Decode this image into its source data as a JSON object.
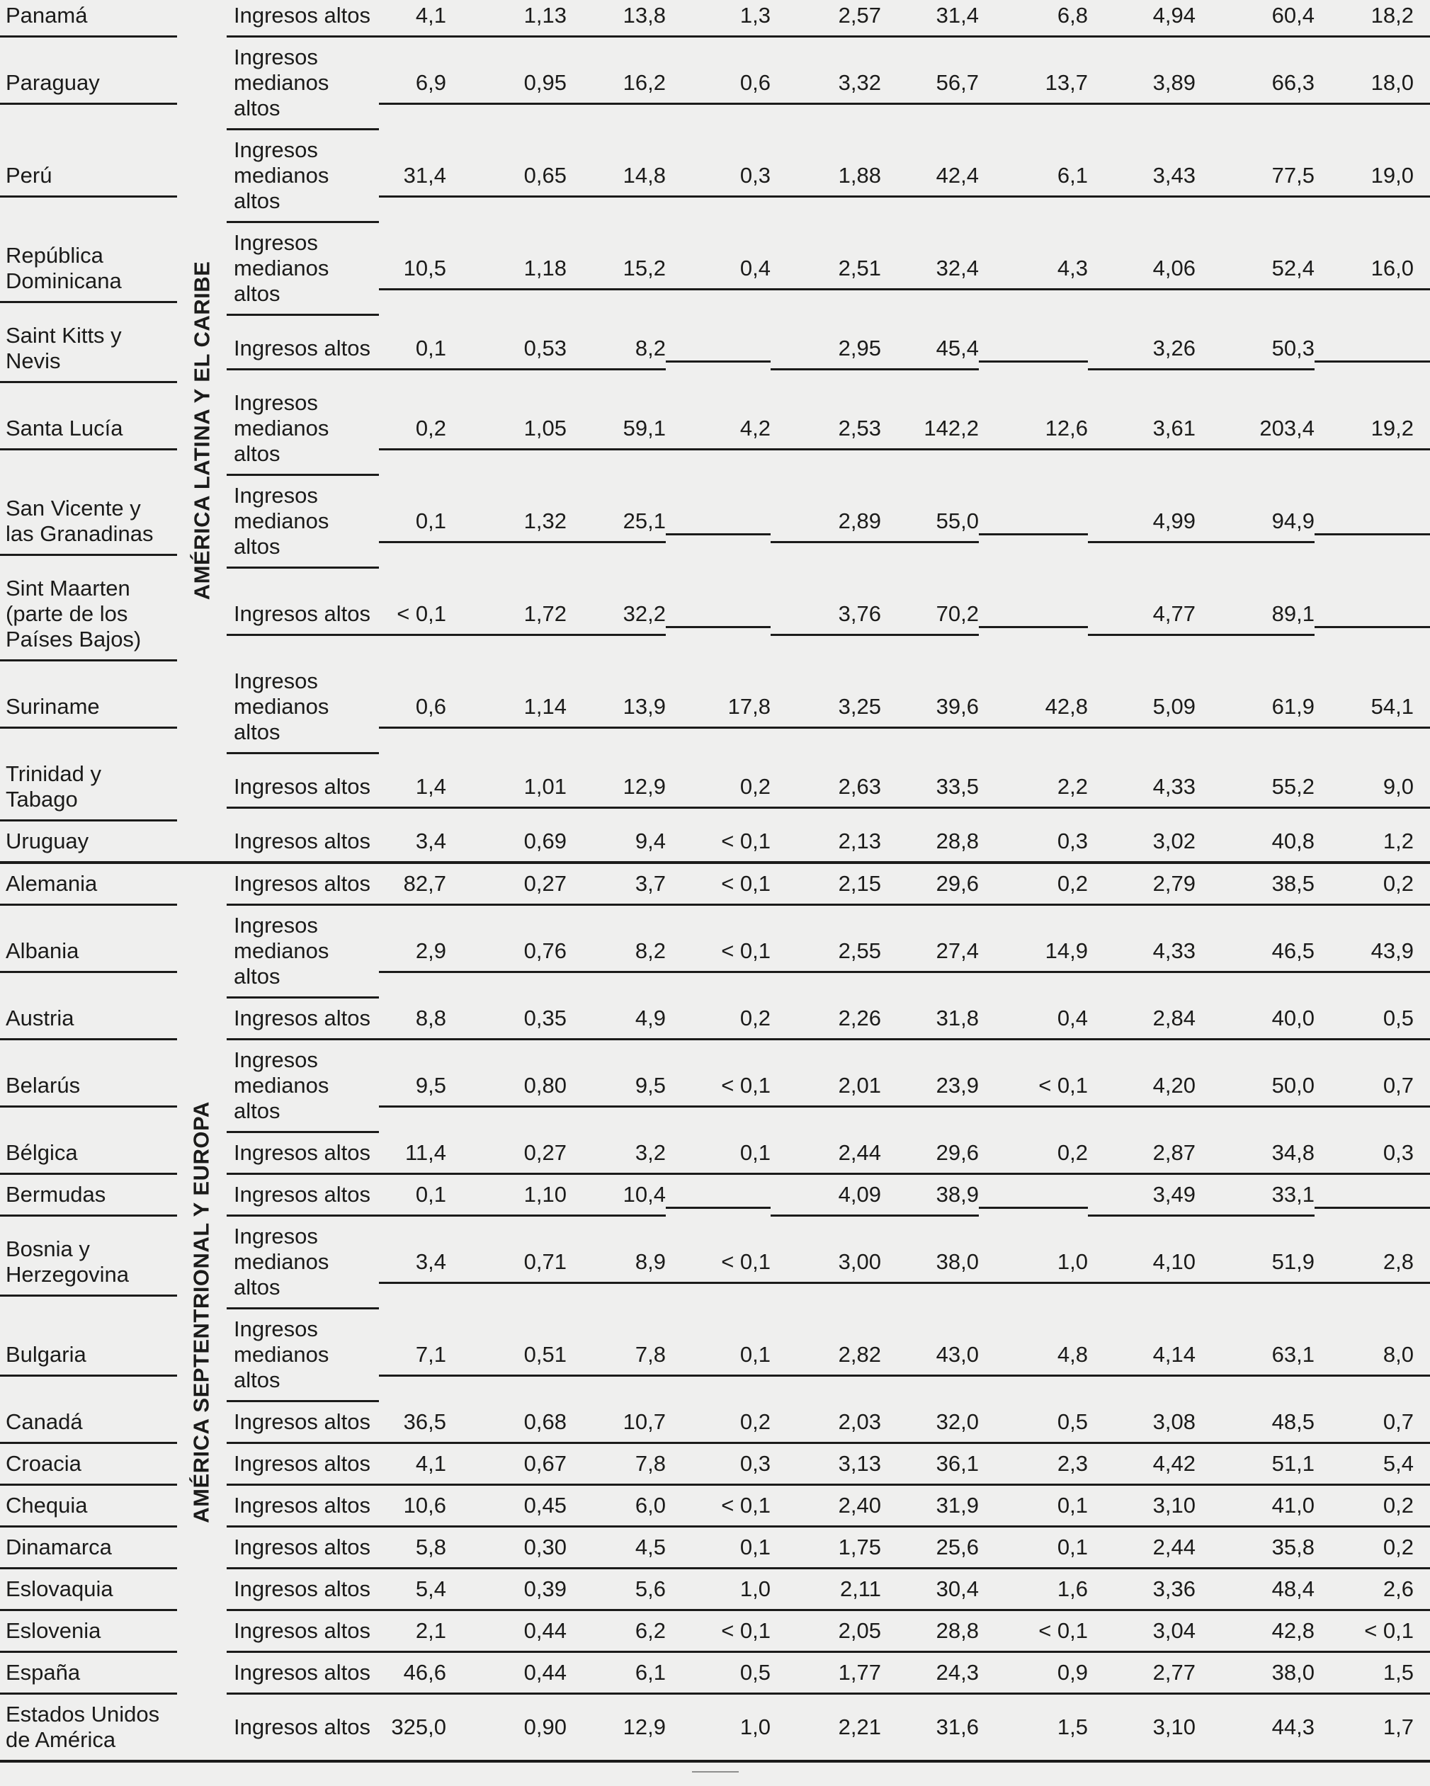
{
  "page": {
    "background": "#efefee",
    "text_color": "#1b1b1a",
    "rule_color": "#1b1b1a"
  },
  "table": {
    "income_group_labels": {
      "high": "Ingresos altos",
      "upper_middle": "Ingresos\nmedianos\naltos"
    },
    "regions": [
      {
        "name": "AMÉRICA LATINA Y EL CARIBE",
        "rows": [
          {
            "country": "Panamá",
            "income_group": "Ingresos altos",
            "values": [
              "4,1",
              "1,13",
              "13,8",
              "1,3",
              "2,57",
              "31,4",
              "6,8",
              "4,94",
              "60,4",
              "18,2"
            ]
          },
          {
            "country": "Paraguay",
            "income_group": "Ingresos\nmedianos\naltos",
            "values": [
              "6,9",
              "0,95",
              "16,2",
              "0,6",
              "3,32",
              "56,7",
              "13,7",
              "3,89",
              "66,3",
              "18,0"
            ]
          },
          {
            "country": "Perú",
            "income_group": "Ingresos\nmedianos\naltos",
            "values": [
              "31,4",
              "0,65",
              "14,8",
              "0,3",
              "1,88",
              "42,4",
              "6,1",
              "3,43",
              "77,5",
              "19,0"
            ]
          },
          {
            "country": "República\nDominicana",
            "income_group": "Ingresos\nmedianos\naltos",
            "values": [
              "10,5",
              "1,18",
              "15,2",
              "0,4",
              "2,51",
              "32,4",
              "4,3",
              "4,06",
              "52,4",
              "16,0"
            ]
          },
          {
            "country": "Saint Kitts y\nNevis",
            "income_group": "Ingresos altos",
            "values": [
              "0,1",
              "0,53",
              "8,2",
              "",
              "2,95",
              "45,4",
              "",
              "3,26",
              "50,3",
              ""
            ]
          },
          {
            "country": "Santa Lucía",
            "income_group": "Ingresos\nmedianos\naltos",
            "values": [
              "0,2",
              "1,05",
              "59,1",
              "4,2",
              "2,53",
              "142,2",
              "12,6",
              "3,61",
              "203,4",
              "19,2"
            ]
          },
          {
            "country": "San Vicente y\nlas Granadinas",
            "income_group": "Ingresos\nmedianos\naltos",
            "values": [
              "0,1",
              "1,32",
              "25,1",
              "",
              "2,89",
              "55,0",
              "",
              "4,99",
              "94,9",
              ""
            ]
          },
          {
            "country": "Sint Maarten\n(parte de los\nPaíses Bajos)",
            "income_group": "Ingresos altos",
            "values": [
              "< 0,1",
              "1,72",
              "32,2",
              "",
              "3,76",
              "70,2",
              "",
              "4,77",
              "89,1",
              ""
            ]
          },
          {
            "country": "Suriname",
            "income_group": "Ingresos\nmedianos\naltos",
            "values": [
              "0,6",
              "1,14",
              "13,9",
              "17,8",
              "3,25",
              "39,6",
              "42,8",
              "5,09",
              "61,9",
              "54,1"
            ]
          },
          {
            "country": "Trinidad y\nTabago",
            "income_group": "Ingresos altos",
            "values": [
              "1,4",
              "1,01",
              "12,9",
              "0,2",
              "2,63",
              "33,5",
              "2,2",
              "4,33",
              "55,2",
              "9,0"
            ]
          },
          {
            "country": "Uruguay",
            "income_group": "Ingresos altos",
            "values": [
              "3,4",
              "0,69",
              "9,4",
              "< 0,1",
              "2,13",
              "28,8",
              "0,3",
              "3,02",
              "40,8",
              "1,2"
            ]
          }
        ]
      },
      {
        "name": "AMÉRICA SEPTENTRIONAL Y EUROPA",
        "rows": [
          {
            "country": "Alemania",
            "income_group": "Ingresos altos",
            "values": [
              "82,7",
              "0,27",
              "3,7",
              "< 0,1",
              "2,15",
              "29,6",
              "0,2",
              "2,79",
              "38,5",
              "0,2"
            ]
          },
          {
            "country": "Albania",
            "income_group": "Ingresos\nmedianos\naltos",
            "values": [
              "2,9",
              "0,76",
              "8,2",
              "< 0,1",
              "2,55",
              "27,4",
              "14,9",
              "4,33",
              "46,5",
              "43,9"
            ]
          },
          {
            "country": "Austria",
            "income_group": "Ingresos altos",
            "values": [
              "8,8",
              "0,35",
              "4,9",
              "0,2",
              "2,26",
              "31,8",
              "0,4",
              "2,84",
              "40,0",
              "0,5"
            ]
          },
          {
            "country": "Belarús",
            "income_group": "Ingresos\nmedianos\naltos",
            "values": [
              "9,5",
              "0,80",
              "9,5",
              "< 0,1",
              "2,01",
              "23,9",
              "< 0,1",
              "4,20",
              "50,0",
              "0,7"
            ]
          },
          {
            "country": "Bélgica",
            "income_group": "Ingresos altos",
            "values": [
              "11,4",
              "0,27",
              "3,2",
              "0,1",
              "2,44",
              "29,6",
              "0,2",
              "2,87",
              "34,8",
              "0,3"
            ]
          },
          {
            "country": "Bermudas",
            "income_group": "Ingresos altos",
            "values": [
              "0,1",
              "1,10",
              "10,4",
              "",
              "4,09",
              "38,9",
              "",
              "3,49",
              "33,1",
              ""
            ]
          },
          {
            "country": "Bosnia y\nHerzegovina",
            "income_group": "Ingresos\nmedianos\naltos",
            "values": [
              "3,4",
              "0,71",
              "8,9",
              "< 0,1",
              "3,00",
              "38,0",
              "1,0",
              "4,10",
              "51,9",
              "2,8"
            ]
          },
          {
            "country": "Bulgaria",
            "income_group": "Ingresos\nmedianos\naltos",
            "values": [
              "7,1",
              "0,51",
              "7,8",
              "0,1",
              "2,82",
              "43,0",
              "4,8",
              "4,14",
              "63,1",
              "8,0"
            ]
          },
          {
            "country": "Canadá",
            "income_group": "Ingresos altos",
            "values": [
              "36,5",
              "0,68",
              "10,7",
              "0,2",
              "2,03",
              "32,0",
              "0,5",
              "3,08",
              "48,5",
              "0,7"
            ]
          },
          {
            "country": "Croacia",
            "income_group": "Ingresos altos",
            "values": [
              "4,1",
              "0,67",
              "7,8",
              "0,3",
              "3,13",
              "36,1",
              "2,3",
              "4,42",
              "51,1",
              "5,4"
            ]
          },
          {
            "country": "Chequia",
            "income_group": "Ingresos altos",
            "values": [
              "10,6",
              "0,45",
              "6,0",
              "< 0,1",
              "2,40",
              "31,9",
              "0,1",
              "3,10",
              "41,0",
              "0,2"
            ]
          },
          {
            "country": "Dinamarca",
            "income_group": "Ingresos altos",
            "values": [
              "5,8",
              "0,30",
              "4,5",
              "0,1",
              "1,75",
              "25,6",
              "0,1",
              "2,44",
              "35,8",
              "0,2"
            ]
          },
          {
            "country": "Eslovaquia",
            "income_group": "Ingresos altos",
            "values": [
              "5,4",
              "0,39",
              "5,6",
              "1,0",
              "2,11",
              "30,4",
              "1,6",
              "3,36",
              "48,4",
              "2,6"
            ]
          },
          {
            "country": "Eslovenia",
            "income_group": "Ingresos altos",
            "values": [
              "2,1",
              "0,44",
              "6,2",
              "< 0,1",
              "2,05",
              "28,8",
              "< 0,1",
              "3,04",
              "42,8",
              "< 0,1"
            ]
          },
          {
            "country": "España",
            "income_group": "Ingresos altos",
            "values": [
              "46,6",
              "0,44",
              "6,1",
              "0,5",
              "1,77",
              "24,3",
              "0,9",
              "2,77",
              "38,0",
              "1,5"
            ]
          },
          {
            "country": "Estados Unidos\nde América",
            "income_group": "Ingresos altos",
            "values": [
              "325,0",
              "0,90",
              "12,9",
              "1,0",
              "2,21",
              "31,6",
              "1,5",
              "3,10",
              "44,3",
              "1,7"
            ]
          }
        ]
      }
    ]
  }
}
